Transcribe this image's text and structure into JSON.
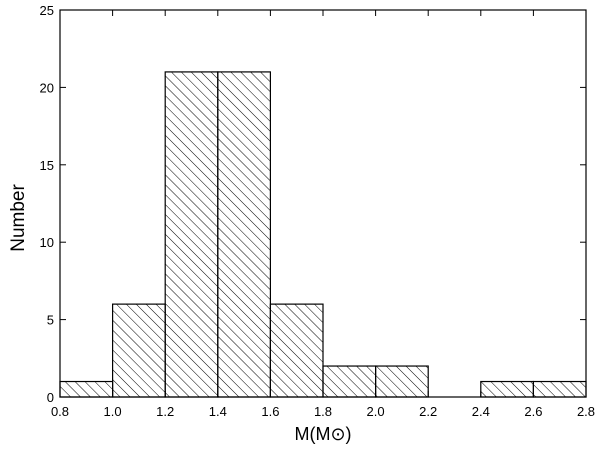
{
  "chart_data": {
    "type": "histogram",
    "xlabel": "M(M⊙)",
    "ylabel": "Number",
    "bins": [
      0.8,
      1.0,
      1.2,
      1.4,
      1.6,
      1.8,
      2.0,
      2.2,
      2.4,
      2.6,
      2.8
    ],
    "values": [
      1,
      6,
      21,
      21,
      6,
      2,
      2,
      0,
      1,
      1
    ],
    "color": "#000000",
    "xlim": [
      0.8,
      2.8
    ],
    "xticks": [
      0.8,
      {
        "value": 1,
        "label": "1.0"
      },
      1.2,
      1.4,
      1.6,
      1.8,
      {
        "value": 2,
        "label": "2.0"
      },
      2.2,
      2.4,
      2.6,
      2.8
    ],
    "ylim": [
      0,
      25
    ],
    "yticks": [
      0,
      5,
      10,
      15,
      20,
      25
    ]
  }
}
